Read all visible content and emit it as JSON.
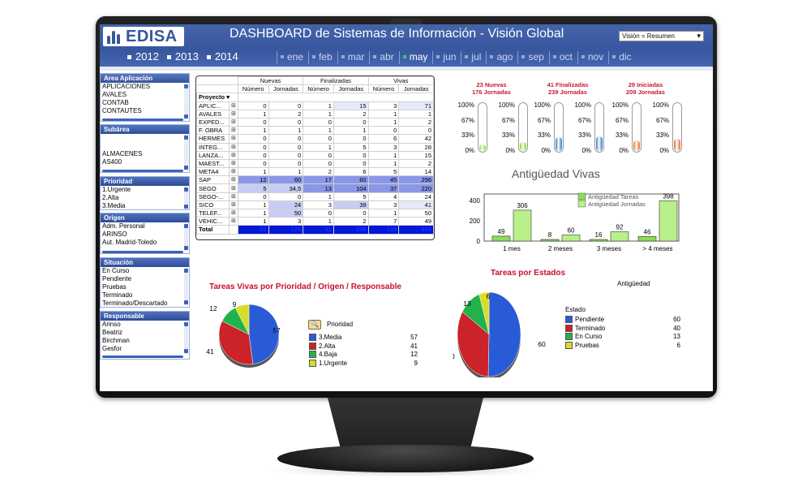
{
  "header": {
    "brand": "EDISA",
    "title": "DASHBOARD de Sistemas de Información - Visión Global",
    "view_select": "Visión  = Resumen",
    "years": [
      "2012",
      "2013",
      "2014"
    ],
    "months": [
      "ene",
      "feb",
      "mar",
      "abr",
      "may",
      "jun",
      "jul",
      "ago",
      "sep",
      "oct",
      "nov",
      "dic"
    ],
    "selected_month": "may"
  },
  "sidebar": {
    "area": {
      "title": "Area Aplicación",
      "items": [
        "APLICACIONES",
        "AVALES",
        "CONTAB",
        "CONTAUTES"
      ]
    },
    "subarea": {
      "title": "Subárea",
      "items": [
        "ALMACENES",
        "AS400"
      ]
    },
    "prioridad": {
      "title": "Prioridad",
      "items": [
        "1.Urgente",
        "2.Alta",
        "3.Media"
      ]
    },
    "origen": {
      "title": "Origen",
      "items": [
        "Adm. Personal",
        "ARINSO",
        "Aut. Madrid-Toledo"
      ]
    },
    "situacion": {
      "title": "Situación",
      "items": [
        "En Curso",
        "Pendiente",
        "Pruebas",
        "Terminado",
        "Terminado/Descartado"
      ]
    },
    "responsable": {
      "title": "Responsable",
      "items": [
        "Arinso",
        "Beatriz",
        "Birchman",
        "Gesfor"
      ]
    }
  },
  "table": {
    "groups": [
      "Nuevas",
      "Finalizadas",
      "Vivas"
    ],
    "subheaders": [
      "Número",
      "Jornadas",
      "Número",
      "Jornadas",
      "Número",
      "Jornadas"
    ],
    "row_header": "Proyecto",
    "rows": [
      {
        "name": "APLIC...",
        "v": [
          "0",
          "0",
          "1",
          "15",
          "3",
          "71"
        ]
      },
      {
        "name": "AVALES",
        "v": [
          "1",
          "2",
          "1",
          "2",
          "1",
          "1"
        ]
      },
      {
        "name": "EXPED...",
        "v": [
          "0",
          "0",
          "0",
          "0",
          "1",
          "2"
        ]
      },
      {
        "name": "F. OBRA",
        "v": [
          "1",
          "1",
          "1",
          "1",
          "0",
          "0"
        ]
      },
      {
        "name": "HERMES",
        "v": [
          "0",
          "0",
          "0",
          "0",
          "6",
          "42"
        ]
      },
      {
        "name": "INTEG...",
        "v": [
          "0",
          "0",
          "1",
          "5",
          "3",
          "28"
        ]
      },
      {
        "name": "LANZA...",
        "v": [
          "0",
          "0",
          "0",
          "0",
          "1",
          "15"
        ]
      },
      {
        "name": "MAEST...",
        "v": [
          "0",
          "0",
          "0",
          "0",
          "1",
          "2"
        ]
      },
      {
        "name": "META4",
        "v": [
          "1",
          "1",
          "2",
          "6",
          "5",
          "14"
        ]
      },
      {
        "name": "SAP",
        "v": [
          "12",
          "60",
          "17",
          "60",
          "45",
          "296"
        ]
      },
      {
        "name": "SEGO",
        "v": [
          "5",
          "34,5",
          "13",
          "104",
          "37",
          "220"
        ]
      },
      {
        "name": "SEGO-...",
        "v": [
          "0",
          "0",
          "1",
          "5",
          "4",
          "24"
        ]
      },
      {
        "name": "SICO",
        "v": [
          "1",
          "24",
          "3",
          "39",
          "3",
          "41"
        ]
      },
      {
        "name": "TELEF...",
        "v": [
          "1",
          "50",
          "0",
          "0",
          "1",
          "50"
        ]
      },
      {
        "name": "VEHIC...",
        "v": [
          "1",
          "3",
          "1",
          "2",
          "7",
          "49"
        ]
      }
    ],
    "total_label": "Total",
    "total": [
      "23",
      "176",
      "41",
      "239",
      "119",
      "855"
    ]
  },
  "gauges": [
    {
      "line1": "23 Nuevas",
      "line2": "176 Jornadas",
      "pct_a": 0.1,
      "pct_b": 0.18,
      "color": "#7ed321"
    },
    {
      "line1": "41 Finalizadas",
      "line2": "239 Jornadas",
      "pct_a": 0.28,
      "pct_b": 0.3,
      "color": "#2f6fd0"
    },
    {
      "line1": "29 Iniciadas",
      "line2": "209 Jornadas",
      "pct_a": 0.22,
      "pct_b": 0.25,
      "color": "#e8632b"
    }
  ],
  "gauge_ticks": [
    "100%",
    "67%",
    "33%",
    "0%"
  ],
  "antiguedad": {
    "title": "Antigüedad  Vivas",
    "legend": [
      "Antigüedad Tareas",
      "Antigüedad Jornadas"
    ],
    "xlabel": "Antigüedad",
    "chart_data": {
      "type": "bar",
      "categories": [
        "1 mes",
        "2 meses",
        "3 meses",
        "> 4 meses"
      ],
      "series": [
        {
          "name": "Antigüedad Tareas",
          "values": [
            49,
            8,
            16,
            46
          ]
        },
        {
          "name": "Antigüedad Jornadas",
          "values": [
            306,
            60,
            92,
            398
          ]
        }
      ],
      "yticks": [
        "400",
        "200",
        "0"
      ],
      "ylim": [
        0,
        450
      ]
    }
  },
  "pie_prioridad": {
    "title": "Tareas Vivas por Prioridad / Origen / Responsable",
    "legend_title": "Prioridad",
    "chart_data": {
      "type": "pie",
      "labels": [
        "3.Media",
        "2.Alta",
        "4.Baja",
        "1.Urgente"
      ],
      "values": [
        57,
        41,
        12,
        9
      ],
      "colors": [
        "#2a5bd7",
        "#cc2229",
        "#21b34a",
        "#d9dc2a"
      ]
    }
  },
  "pie_estados": {
    "title": "Tareas por Estados",
    "legend_title": "Estado",
    "chart_data": {
      "type": "pie",
      "labels": [
        "Pendiente",
        "Terminado",
        "En Curso",
        "Pruebas"
      ],
      "values": [
        60,
        40,
        13,
        6
      ],
      "colors": [
        "#2a5bd7",
        "#cc2229",
        "#21b34a",
        "#d9dc2a"
      ]
    }
  }
}
